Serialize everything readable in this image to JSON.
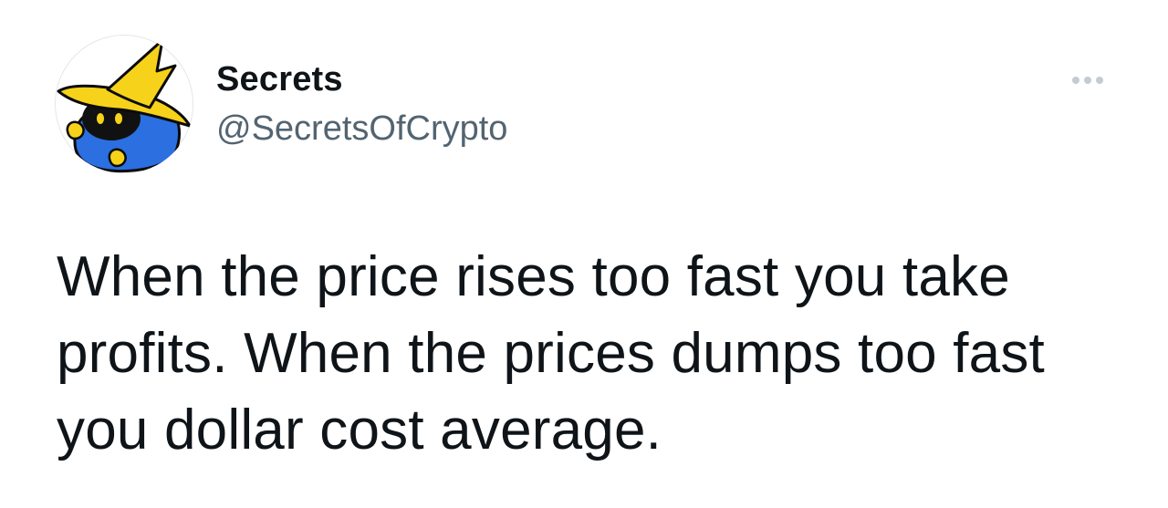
{
  "author": {
    "display_name": "Secrets",
    "handle": "@SecretsOfCrypto"
  },
  "avatar": {
    "icon": "black-mage-avatar-icon",
    "colors": {
      "hat": "#f6d21a",
      "face": "#111111",
      "eyes": "#f6d21a",
      "cloak": "#2b6fe0"
    }
  },
  "tweet": {
    "text": "When the price rises too fast you take profits. When the prices dumps too fast you dollar cost average."
  },
  "menu": {
    "icon": "more-options-icon"
  },
  "colors": {
    "text": "#0f1419",
    "secondary_text": "#536471",
    "dots": "#c4cbd1"
  }
}
